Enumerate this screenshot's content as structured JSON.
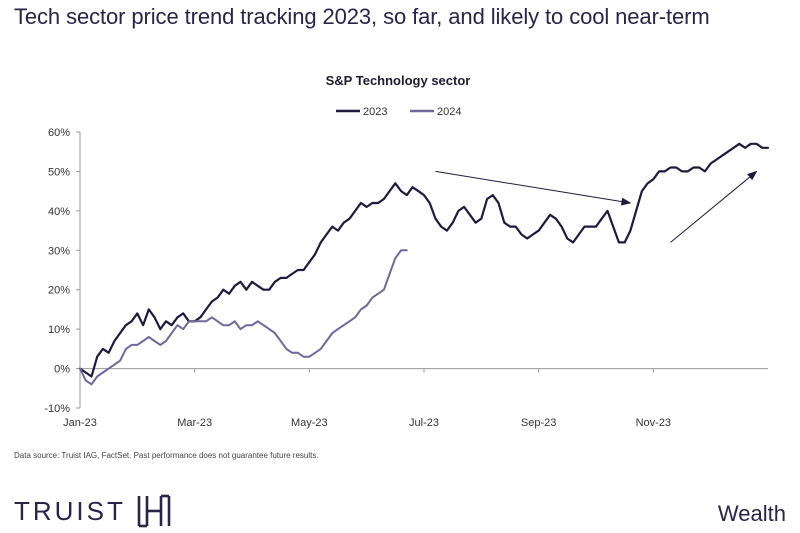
{
  "page": {
    "title": "Tech sector price trend tracking 2023, so far, and likely to cool near-term",
    "footnote": "Data source: Truist IAG, FactSet. Past performance does not guarantee future results.",
    "logo_text": "TRUIST",
    "logo_mark": "HH",
    "brand_tag": "Wealth"
  },
  "colors": {
    "series_2023": "#1f1a3d",
    "series_2024": "#6f6899",
    "arrow": "#1f1a3d"
  },
  "chart_data": {
    "type": "line",
    "title": "S&P Technology sector",
    "legend": "top-center",
    "y_unit": "percent",
    "ylim": [
      -10,
      60
    ],
    "yticks": [
      "-10%",
      "0%",
      "10%",
      "20%",
      "30%",
      "40%",
      "50%",
      "60%"
    ],
    "xlim": [
      0,
      12
    ],
    "xticks": [
      {
        "month": 0,
        "label": "Jan-23"
      },
      {
        "month": 2,
        "label": "Mar-23"
      },
      {
        "month": 4,
        "label": "May-23"
      },
      {
        "month": 6,
        "label": "Jul-23"
      },
      {
        "month": 8,
        "label": "Sep-23"
      },
      {
        "month": 10,
        "label": "Nov-23"
      }
    ],
    "series": [
      {
        "name": "2023",
        "x": [
          0,
          0.1,
          0.2,
          0.3,
          0.4,
          0.5,
          0.6,
          0.7,
          0.8,
          0.9,
          1.0,
          1.1,
          1.2,
          1.3,
          1.4,
          1.5,
          1.6,
          1.7,
          1.8,
          1.9,
          2.0,
          2.1,
          2.2,
          2.3,
          2.4,
          2.5,
          2.6,
          2.7,
          2.8,
          2.9,
          3.0,
          3.1,
          3.2,
          3.3,
          3.4,
          3.5,
          3.6,
          3.7,
          3.8,
          3.9,
          4.0,
          4.1,
          4.2,
          4.3,
          4.4,
          4.5,
          4.6,
          4.7,
          4.8,
          4.9,
          5.0,
          5.1,
          5.2,
          5.3,
          5.4,
          5.5,
          5.6,
          5.7,
          5.8,
          5.9,
          6.0,
          6.1,
          6.2,
          6.3,
          6.4,
          6.5,
          6.6,
          6.7,
          6.8,
          6.9,
          7.0,
          7.1,
          7.2,
          7.3,
          7.4,
          7.5,
          7.6,
          7.7,
          7.8,
          7.9,
          8.0,
          8.1,
          8.2,
          8.3,
          8.4,
          8.5,
          8.6,
          8.7,
          8.8,
          8.9,
          9.0,
          9.1,
          9.2,
          9.3,
          9.4,
          9.5,
          9.6,
          9.7,
          9.8,
          9.9,
          10.0,
          10.1,
          10.2,
          10.3,
          10.4,
          10.5,
          10.6,
          10.7,
          10.8,
          10.9,
          11.0,
          11.1,
          11.2,
          11.3,
          11.4,
          11.5,
          11.6,
          11.7,
          11.8,
          11.9,
          12.0
        ],
        "values": [
          0,
          -1,
          -2,
          3,
          5,
          4,
          7,
          9,
          11,
          12,
          14,
          11,
          15,
          13,
          10,
          12,
          11,
          13,
          14,
          12,
          12,
          13,
          15,
          17,
          18,
          20,
          19,
          21,
          22,
          20,
          22,
          21,
          20,
          20,
          22,
          23,
          23,
          24,
          25,
          25,
          27,
          29,
          32,
          34,
          36,
          35,
          37,
          38,
          40,
          42,
          41,
          42,
          42,
          43,
          45,
          47,
          45,
          44,
          46,
          45,
          44,
          42,
          38,
          36,
          35,
          37,
          40,
          41,
          39,
          37,
          38,
          43,
          44,
          42,
          37,
          36,
          36,
          34,
          33,
          34,
          35,
          37,
          39,
          38,
          36,
          33,
          32,
          34,
          36,
          36,
          36,
          38,
          40,
          36,
          32,
          32,
          35,
          40,
          45,
          47,
          48,
          50,
          50,
          51,
          51,
          50,
          50,
          51,
          51,
          50,
          52,
          53,
          54,
          55,
          56,
          57,
          56,
          57,
          57,
          56,
          56
        ]
      },
      {
        "name": "2024",
        "x": [
          0,
          0.1,
          0.2,
          0.3,
          0.4,
          0.5,
          0.6,
          0.7,
          0.8,
          0.9,
          1.0,
          1.1,
          1.2,
          1.3,
          1.4,
          1.5,
          1.6,
          1.7,
          1.8,
          1.9,
          2.0,
          2.1,
          2.2,
          2.3,
          2.4,
          2.5,
          2.6,
          2.7,
          2.8,
          2.9,
          3.0,
          3.1,
          3.2,
          3.3,
          3.4,
          3.5,
          3.6,
          3.7,
          3.8,
          3.9,
          4.0,
          4.1,
          4.2,
          4.3,
          4.4,
          4.5,
          4.6,
          4.7,
          4.8,
          4.9,
          5.0,
          5.1,
          5.2,
          5.3,
          5.4,
          5.5,
          5.6,
          5.7
        ],
        "values": [
          0,
          -3,
          -4,
          -2,
          -1,
          0,
          1,
          2,
          5,
          6,
          6,
          7,
          8,
          7,
          6,
          7,
          9,
          11,
          10,
          12,
          12,
          12,
          12,
          13,
          12,
          11,
          11,
          12,
          10,
          11,
          11,
          12,
          11,
          10,
          9,
          7,
          5,
          4,
          4,
          3,
          3,
          4,
          5,
          7,
          9,
          10,
          11,
          12,
          13,
          15,
          16,
          18,
          19,
          20,
          24,
          28,
          30,
          30
        ]
      }
    ],
    "annotations": [
      {
        "type": "arrow",
        "from": [
          6.2,
          50
        ],
        "to": [
          9.6,
          42
        ]
      },
      {
        "type": "arrow",
        "from": [
          10.3,
          32
        ],
        "to": [
          11.8,
          50
        ]
      }
    ]
  }
}
